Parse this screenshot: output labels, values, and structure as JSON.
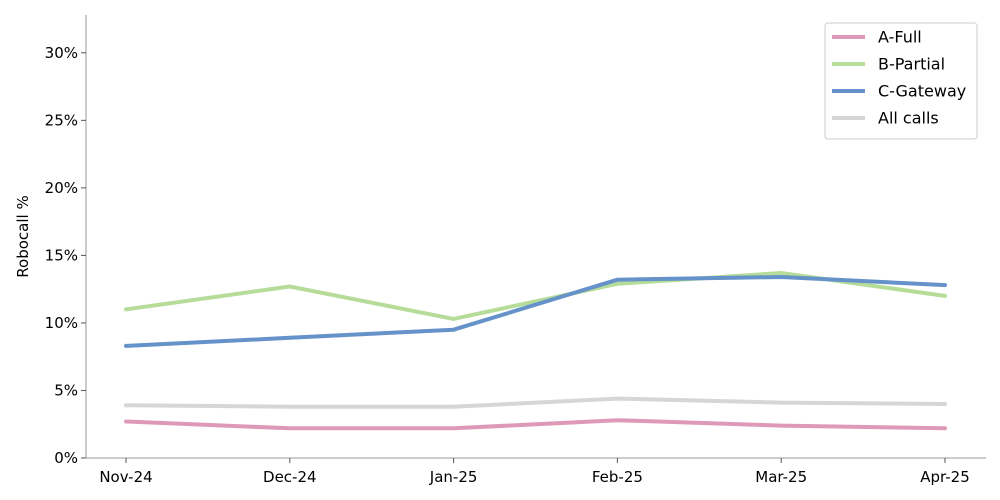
{
  "chart_data": {
    "type": "line",
    "title": "",
    "xlabel": "",
    "ylabel": "Robocall %",
    "categories": [
      "Nov-24",
      "Dec-24",
      "Jan-25",
      "Feb-25",
      "Mar-25",
      "Apr-25"
    ],
    "ylim": [
      0,
      0.328
    ],
    "yticks": [
      0,
      0.05,
      0.1,
      0.15,
      0.2,
      0.25,
      0.3
    ],
    "ytick_labels": [
      "0%",
      "5%",
      "10%",
      "15%",
      "20%",
      "25%",
      "30%"
    ],
    "grid": false,
    "legend_position": "top-right",
    "series": [
      {
        "name": "A-Full",
        "color": "#de98b8",
        "values": [
          0.027,
          0.022,
          0.022,
          0.028,
          0.024,
          0.022
        ]
      },
      {
        "name": "B-Partial",
        "color": "#b5dc98",
        "values": [
          0.11,
          0.127,
          0.103,
          0.129,
          0.137,
          0.12
        ]
      },
      {
        "name": "C-Gateway",
        "color": "#6592c9",
        "values": [
          0.083,
          0.089,
          0.095,
          0.132,
          0.134,
          0.128
        ]
      },
      {
        "name": "All calls",
        "color": "#d6d6d6",
        "values": [
          0.039,
          0.038,
          0.038,
          0.044,
          0.041,
          0.04
        ]
      }
    ]
  }
}
